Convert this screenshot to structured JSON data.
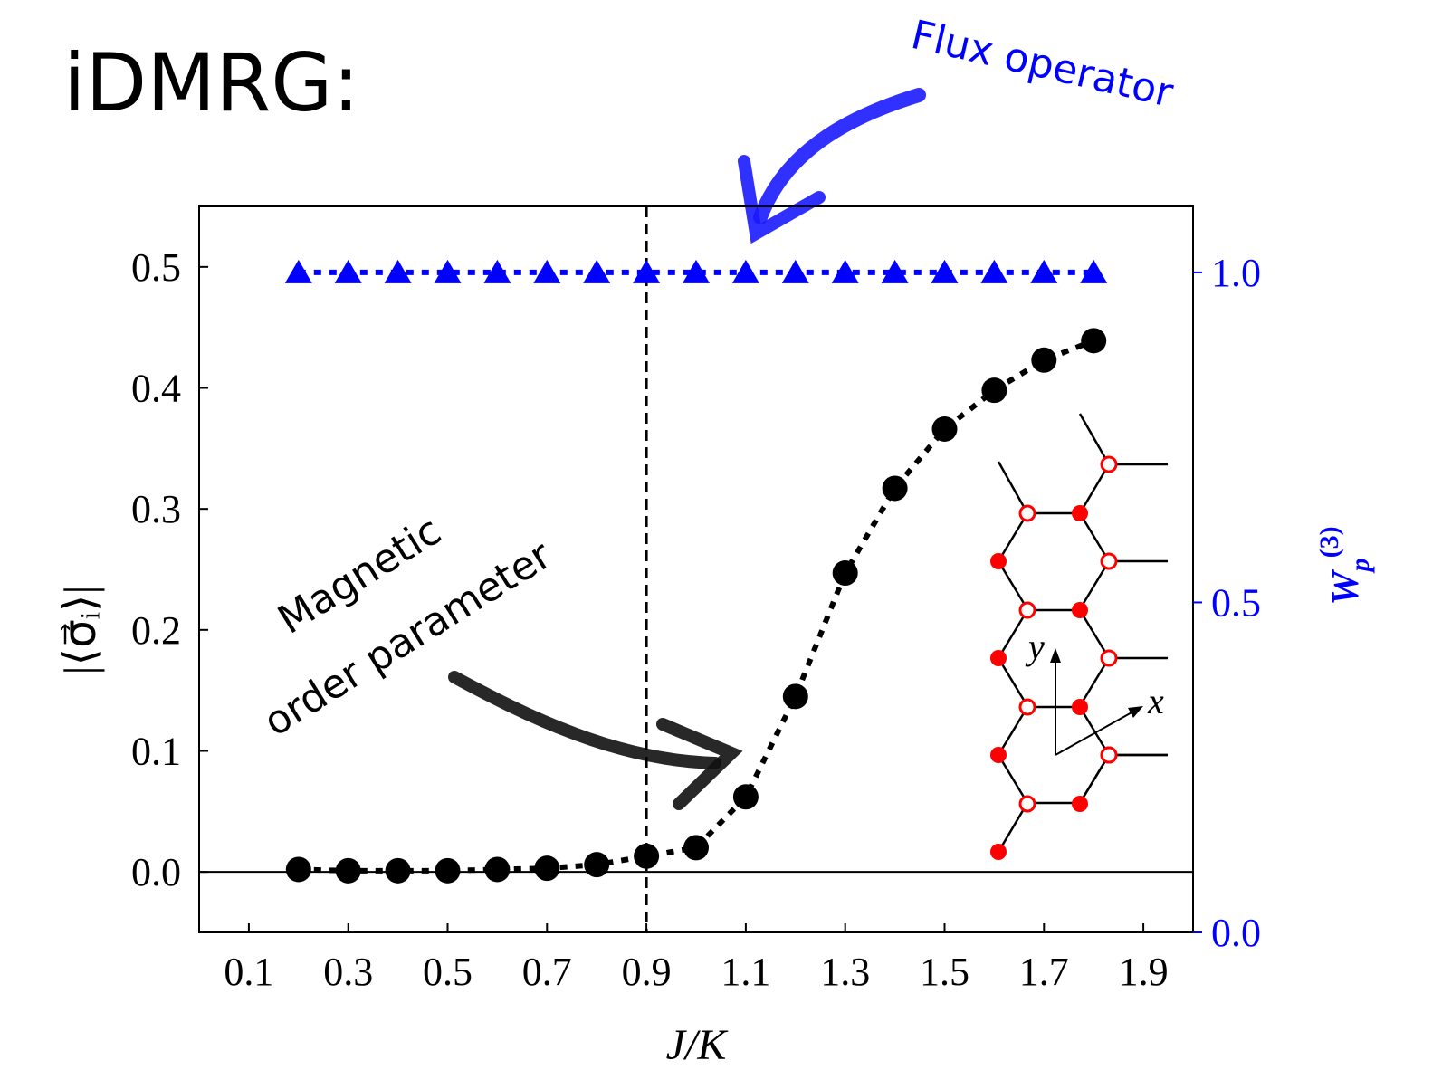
{
  "chart_data": {
    "type": "line",
    "title": "iDMRG:",
    "x_label": "J/K",
    "y_label": "|⟨σ⃗ᵢ⟩|",
    "y2_label": {
      "base": "W",
      "sub": "p",
      "sup": "(3)"
    },
    "x": [
      0.2,
      0.3,
      0.4,
      0.5,
      0.6,
      0.7,
      0.8,
      0.9,
      1.0,
      1.1,
      1.2,
      1.3,
      1.4,
      1.5,
      1.6,
      1.7,
      1.8
    ],
    "series": [
      {
        "color": "#000000",
        "marker": "circle",
        "values": [
          0.002,
          0.001,
          0.001,
          0.001,
          0.002,
          0.003,
          0.006,
          0.013,
          0.02,
          0.062,
          0.145,
          0.247,
          0.317,
          0.366,
          0.398,
          0.423,
          0.439
        ]
      },
      {
        "color": "#0000ff",
        "marker": "triangle",
        "axis": "y2",
        "values": [
          1.0,
          1.0,
          1.0,
          1.0,
          1.0,
          1.0,
          1.0,
          1.0,
          1.0,
          1.0,
          1.0,
          1.0,
          1.0,
          1.0,
          1.0,
          1.0,
          1.0
        ]
      }
    ],
    "xlim": [
      0,
      2
    ],
    "xticks": [
      0.1,
      0.3,
      0.5,
      0.7,
      0.9,
      1.1,
      1.3,
      1.5,
      1.7,
      1.9
    ],
    "ylim": [
      -0.05,
      0.55
    ],
    "yticks": [
      {
        "value": 0,
        "label": "0.0"
      },
      0.1,
      0.2,
      0.3,
      0.4,
      0.5
    ],
    "y2lim": [
      0,
      1.1
    ],
    "y2ticks": [
      {
        "value": 0,
        "label": "0.0"
      },
      0.5,
      {
        "value": 1,
        "label": "1.0"
      }
    ],
    "vline": 0.9,
    "hline": 0,
    "annotations": {
      "flux": "Flux operator",
      "magnetic": [
        "Magnetic",
        "order parameter"
      ]
    },
    "inset": {
      "x_label": "x",
      "y_label": "y"
    }
  }
}
